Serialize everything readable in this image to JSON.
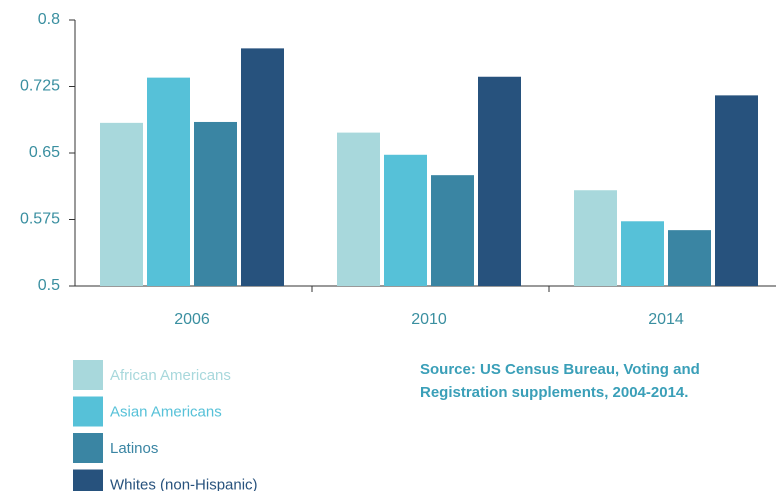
{
  "chart_data": {
    "type": "bar",
    "categories": [
      "2006",
      "2010",
      "2014"
    ],
    "series": [
      {
        "name": "African Americans",
        "color": "#a8d8dc",
        "values": [
          0.684,
          0.673,
          0.608
        ]
      },
      {
        "name": "Asian Americans",
        "color": "#56c1d8",
        "values": [
          0.735,
          0.648,
          0.573
        ]
      },
      {
        "name": "Latinos",
        "color": "#3a85a3",
        "values": [
          0.685,
          0.625,
          0.563
        ]
      },
      {
        "name": "Whites (non-Hispanic)",
        "color": "#27527d",
        "values": [
          0.768,
          0.736,
          0.715
        ]
      }
    ],
    "ylim": [
      0.5,
      0.8
    ],
    "yticks": [
      0.5,
      0.575,
      0.65,
      0.725,
      0.8
    ],
    "source": [
      "Source: US Census Bureau, Voting and",
      "Registration supplements, 2004-2014."
    ]
  }
}
